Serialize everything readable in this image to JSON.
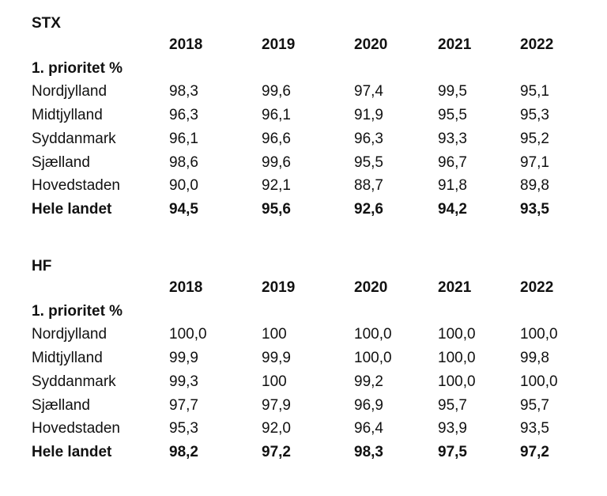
{
  "stx": {
    "title": "STX",
    "years": [
      "2018",
      "2019",
      "2020",
      "2021",
      "2022"
    ],
    "subheading": "1. prioritet %",
    "rows": [
      {
        "label": "Nordjylland",
        "values": [
          "98,3",
          "99,6",
          "97,4",
          "99,5",
          "95,1"
        ]
      },
      {
        "label": "Midtjylland",
        "values": [
          "96,3",
          "96,1",
          "91,9",
          "95,5",
          "95,3"
        ]
      },
      {
        "label": "Syddanmark",
        "values": [
          "96,1",
          "96,6",
          "96,3",
          "93,3",
          "95,2"
        ]
      },
      {
        "label": "Sjælland",
        "values": [
          "98,6",
          "99,6",
          "95,5",
          "96,7",
          "97,1"
        ]
      },
      {
        "label": "Hovedstaden",
        "values": [
          "90,0",
          "92,1",
          "88,7",
          "91,8",
          "89,8"
        ]
      }
    ],
    "total": {
      "label": "Hele landet",
      "values": [
        "94,5",
        "95,6",
        "92,6",
        "94,2",
        "93,5"
      ]
    }
  },
  "hf": {
    "title": "HF",
    "years": [
      "2018",
      "2019",
      "2020",
      "2021",
      "2022"
    ],
    "subheading": "1. prioritet %",
    "rows": [
      {
        "label": "Nordjylland",
        "values": [
          "100,0",
          "100",
          "100,0",
          "100,0",
          "100,0"
        ]
      },
      {
        "label": "Midtjylland",
        "values": [
          "99,9",
          "99,9",
          "100,0",
          "100,0",
          "99,8"
        ]
      },
      {
        "label": "Syddanmark",
        "values": [
          "99,3",
          "100",
          "99,2",
          "100,0",
          "100,0"
        ]
      },
      {
        "label": "Sjælland",
        "values": [
          "97,7",
          "97,9",
          "96,9",
          "95,7",
          "95,7"
        ]
      },
      {
        "label": "Hovedstaden",
        "values": [
          "95,3",
          "92,0",
          "96,4",
          "93,9",
          "93,5"
        ]
      }
    ],
    "total": {
      "label": "Hele landet",
      "values": [
        "98,2",
        "97,2",
        "98,3",
        "97,5",
        "97,2"
      ]
    }
  }
}
